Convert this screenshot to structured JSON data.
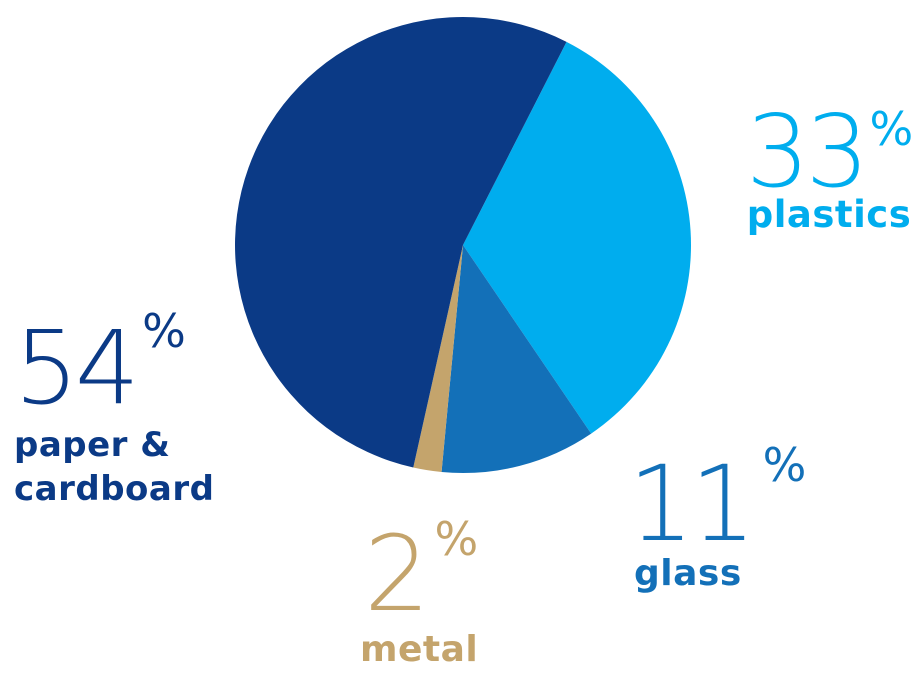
{
  "chart_data": {
    "type": "pie",
    "title": "",
    "start_angle_deg": 27,
    "slices": [
      {
        "label_lines": [
          "plastics"
        ],
        "value": 33,
        "display": "33",
        "unit": "%",
        "color": "#00adee"
      },
      {
        "label_lines": [
          "glass"
        ],
        "value": 11,
        "display": "11",
        "unit": "%",
        "color": "#1370b8"
      },
      {
        "label_lines": [
          "metal"
        ],
        "value": 2,
        "display": "2",
        "unit": "%",
        "color": "#c4a46c"
      },
      {
        "label_lines": [
          "paper &",
          "cardboard"
        ],
        "value": 54,
        "display": "54",
        "unit": "%",
        "color": "#0b3a86"
      }
    ]
  }
}
